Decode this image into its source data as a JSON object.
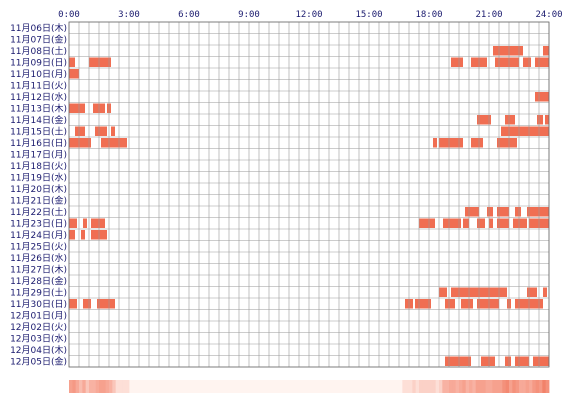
{
  "chart_data": {
    "type": "timeline-heatmap",
    "x_ticks": [
      "0:00",
      "3:00",
      "6:00",
      "9:00",
      "12:00",
      "15:00",
      "18:00",
      "21:00",
      "24:00"
    ],
    "x_range_hours": [
      0,
      24
    ],
    "days": [
      {
        "label": "11月06日(木)",
        "intervals": []
      },
      {
        "label": "11月07日(金)",
        "intervals": []
      },
      {
        "label": "11月08日(土)",
        "intervals": [
          [
            21.2,
            22.7
          ],
          [
            23.7,
            24.0
          ]
        ]
      },
      {
        "label": "11月09日(日)",
        "intervals": [
          [
            0.0,
            0.3
          ],
          [
            1.0,
            2.1
          ],
          [
            19.1,
            19.7
          ],
          [
            20.1,
            20.9
          ],
          [
            21.3,
            22.5
          ],
          [
            22.7,
            23.1
          ],
          [
            23.3,
            24.0
          ]
        ]
      },
      {
        "label": "11月10日(月)",
        "intervals": [
          [
            0.0,
            0.5
          ]
        ]
      },
      {
        "label": "11月11日(火)",
        "intervals": []
      },
      {
        "label": "11月12日(水)",
        "intervals": [
          [
            23.3,
            24.0
          ]
        ]
      },
      {
        "label": "11月13日(木)",
        "intervals": [
          [
            0.0,
            0.8
          ],
          [
            1.2,
            1.8
          ],
          [
            1.9,
            2.1
          ]
        ]
      },
      {
        "label": "11月14日(金)",
        "intervals": [
          [
            20.4,
            21.1
          ],
          [
            21.8,
            22.3
          ],
          [
            23.4,
            23.7
          ],
          [
            23.8,
            24.0
          ]
        ]
      },
      {
        "label": "11月15日(土)",
        "intervals": [
          [
            0.3,
            0.8
          ],
          [
            1.3,
            1.9
          ],
          [
            2.1,
            2.3
          ],
          [
            21.6,
            24.0
          ]
        ]
      },
      {
        "label": "11月16日(日)",
        "intervals": [
          [
            0.0,
            1.1
          ],
          [
            1.6,
            2.9
          ],
          [
            18.2,
            18.4
          ],
          [
            18.5,
            19.7
          ],
          [
            20.1,
            20.7
          ],
          [
            21.4,
            22.4
          ]
        ]
      },
      {
        "label": "11月17日(月)",
        "intervals": []
      },
      {
        "label": "11月18日(火)",
        "intervals": []
      },
      {
        "label": "11月19日(水)",
        "intervals": []
      },
      {
        "label": "11月20日(木)",
        "intervals": []
      },
      {
        "label": "11月21日(金)",
        "intervals": []
      },
      {
        "label": "11月22日(土)",
        "intervals": [
          [
            19.8,
            20.5
          ],
          [
            20.9,
            21.2
          ],
          [
            21.4,
            22.0
          ],
          [
            22.3,
            22.6
          ],
          [
            22.9,
            24.0
          ]
        ]
      },
      {
        "label": "11月23日(日)",
        "intervals": [
          [
            0.0,
            0.4
          ],
          [
            0.7,
            0.9
          ],
          [
            1.1,
            1.8
          ],
          [
            17.5,
            18.3
          ],
          [
            18.7,
            19.6
          ],
          [
            19.7,
            20.0
          ],
          [
            20.4,
            20.8
          ],
          [
            21.0,
            21.2
          ],
          [
            21.4,
            22.0
          ],
          [
            22.2,
            22.9
          ],
          [
            23.0,
            24.0
          ]
        ]
      },
      {
        "label": "11月24日(月)",
        "intervals": [
          [
            0.0,
            0.3
          ],
          [
            0.6,
            0.8
          ],
          [
            1.1,
            1.9
          ]
        ]
      },
      {
        "label": "11月25日(火)",
        "intervals": []
      },
      {
        "label": "11月26日(水)",
        "intervals": []
      },
      {
        "label": "11月27日(木)",
        "intervals": []
      },
      {
        "label": "11月28日(金)",
        "intervals": []
      },
      {
        "label": "11月29日(土)",
        "intervals": [
          [
            18.5,
            18.9
          ],
          [
            19.1,
            21.9
          ],
          [
            22.9,
            23.4
          ],
          [
            23.7,
            23.9
          ]
        ]
      },
      {
        "label": "11月30日(日)",
        "intervals": [
          [
            0.0,
            0.4
          ],
          [
            0.7,
            1.1
          ],
          [
            1.4,
            2.3
          ],
          [
            16.8,
            17.2
          ],
          [
            17.3,
            18.1
          ],
          [
            18.8,
            19.3
          ],
          [
            19.6,
            20.2
          ],
          [
            20.4,
            21.5
          ],
          [
            21.9,
            22.1
          ],
          [
            22.3,
            23.7
          ]
        ]
      },
      {
        "label": "12月01日(月)",
        "intervals": []
      },
      {
        "label": "12月02日(火)",
        "intervals": []
      },
      {
        "label": "12月03日(水)",
        "intervals": []
      },
      {
        "label": "12月04日(木)",
        "intervals": []
      },
      {
        "label": "12月05日(金)",
        "intervals": [
          [
            18.8,
            20.1
          ],
          [
            20.6,
            21.3
          ],
          [
            21.8,
            22.1
          ],
          [
            22.3,
            23.0
          ],
          [
            23.2,
            24.0
          ]
        ]
      }
    ],
    "grid": true,
    "colors": {
      "bar": "#f06e52",
      "bar_light": "#f59c80",
      "grid": "#9a9a9a",
      "label": "#1a1a6e",
      "density_bar_base": "#fff4f0"
    }
  }
}
